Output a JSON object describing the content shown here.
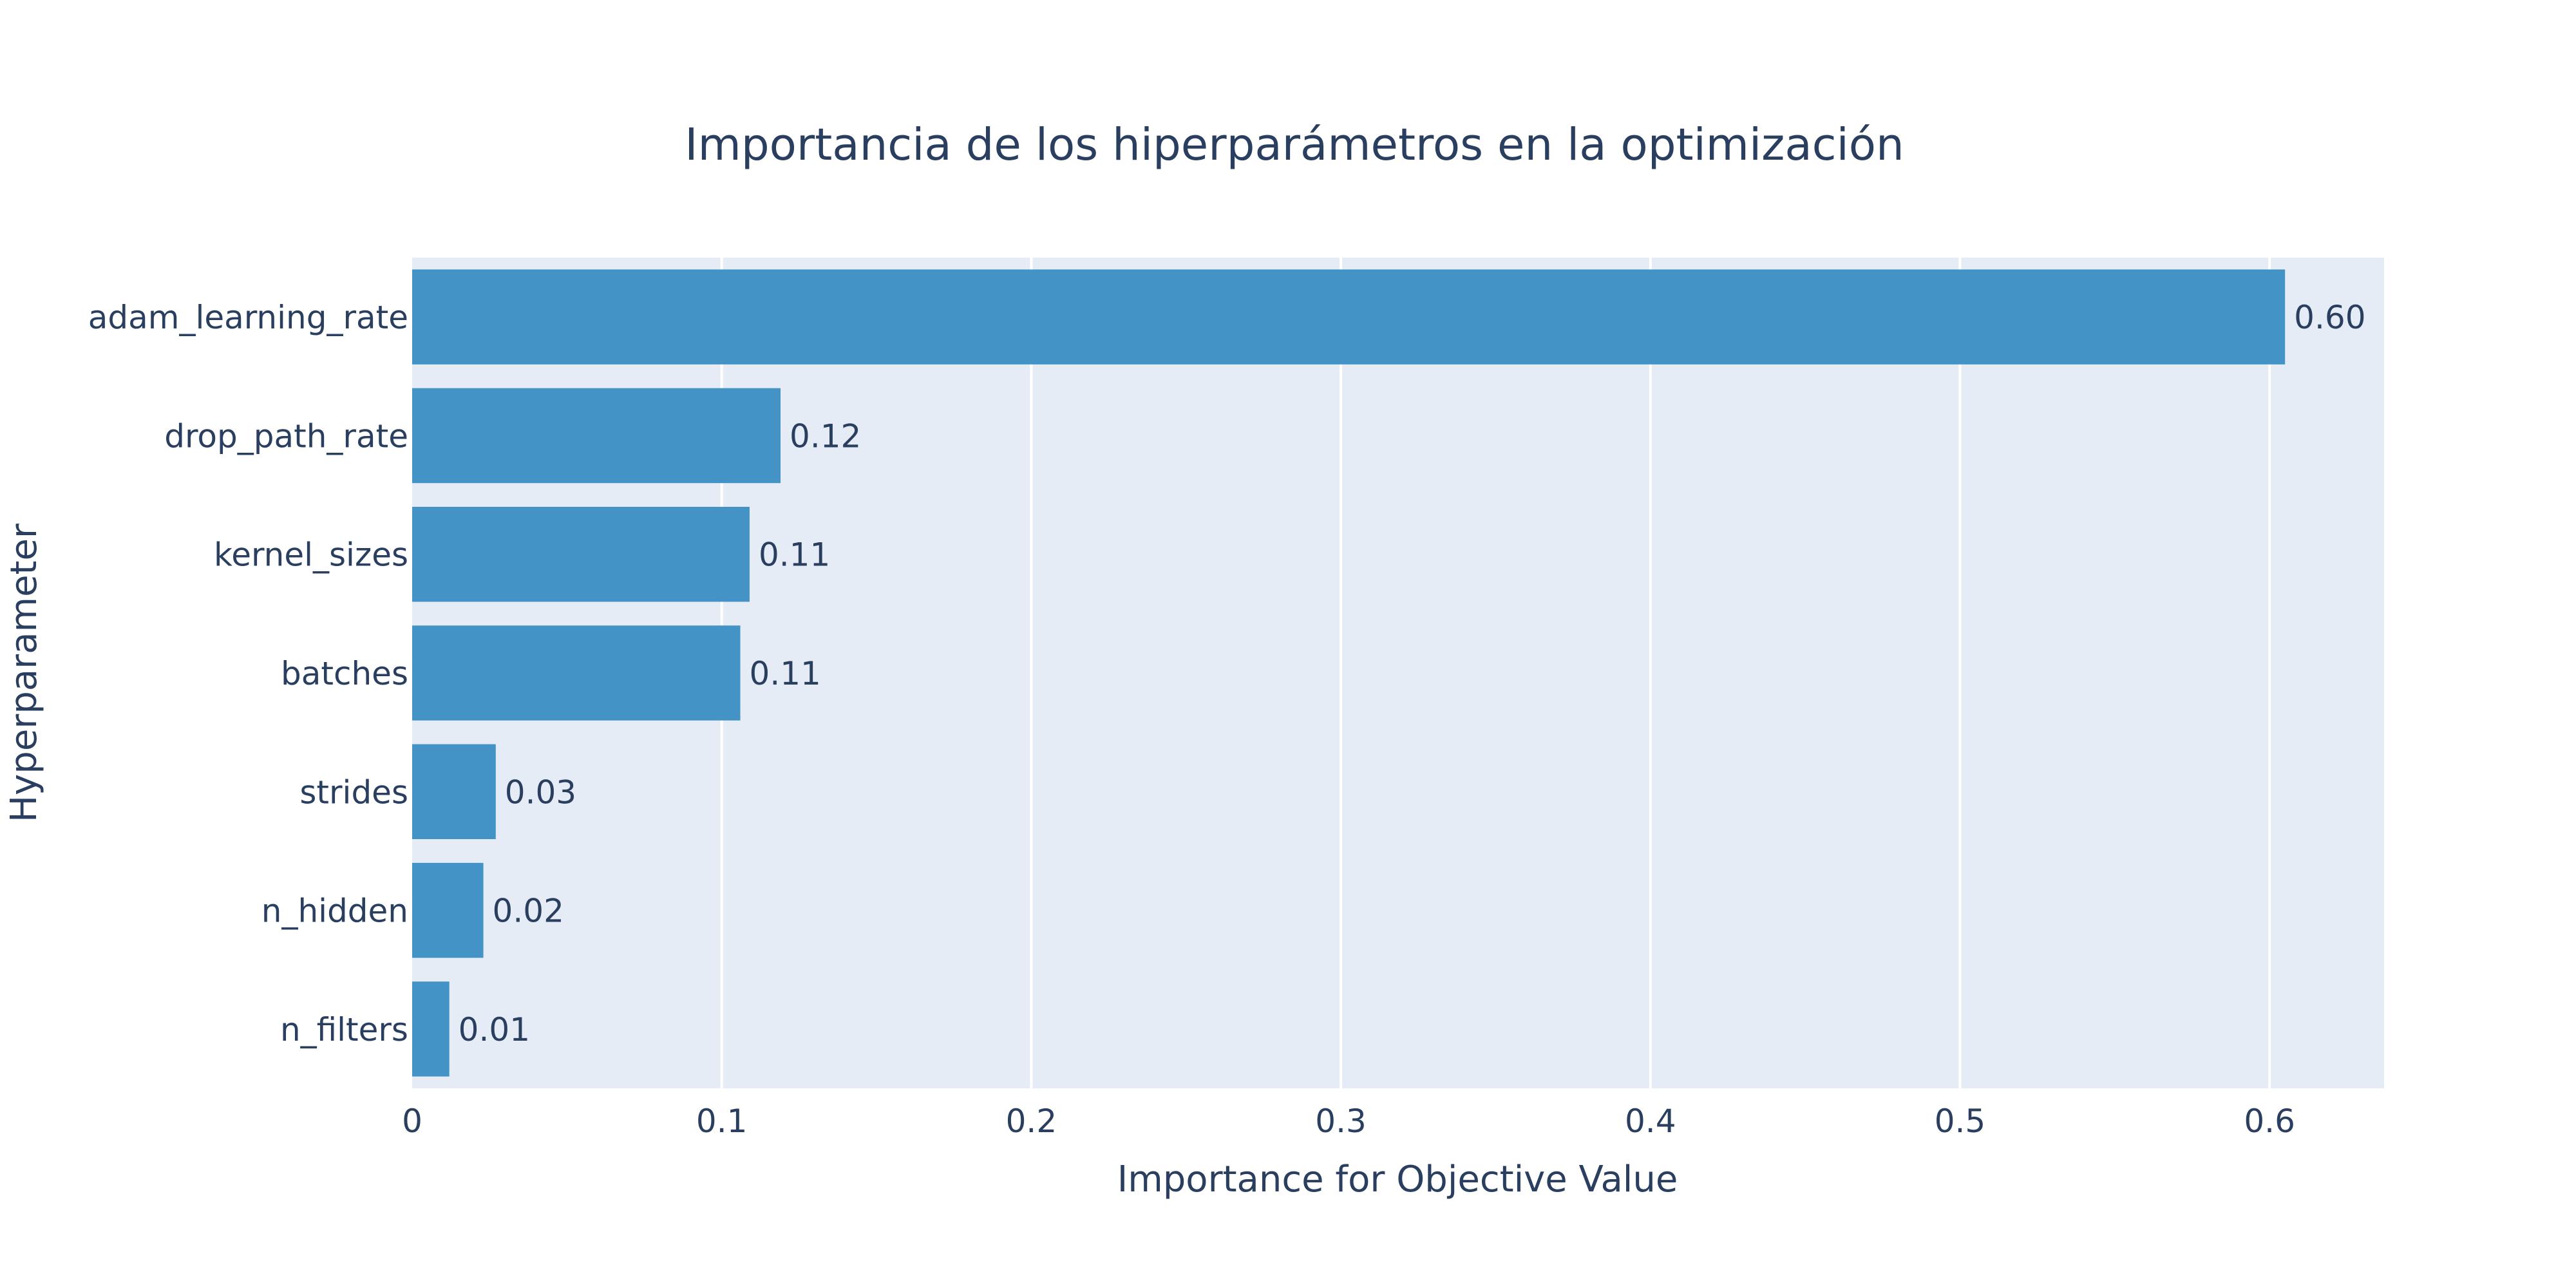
{
  "chart_data": {
    "type": "bar",
    "orientation": "horizontal",
    "title": "Importancia de los hiperparámetros en la optimización",
    "xlabel": "Importance for Objective Value",
    "ylabel": "Hyperparameter",
    "categories": [
      "adam_learning_rate",
      "drop_path_rate",
      "kernel_sizes",
      "batches",
      "strides",
      "n_hidden",
      "n_filters"
    ],
    "values": [
      0.605,
      0.119,
      0.109,
      0.106,
      0.027,
      0.023,
      0.012
    ],
    "value_labels": [
      "0.60",
      "0.12",
      "0.11",
      "0.11",
      "0.03",
      "0.02",
      "0.01"
    ],
    "xlim": [
      0,
      0.637
    ],
    "xticks": [
      0,
      0.1,
      0.2,
      0.3,
      0.4,
      0.5,
      0.6
    ],
    "xtick_labels": [
      "0",
      "0.1",
      "0.2",
      "0.3",
      "0.4",
      "0.5",
      "0.6"
    ],
    "grid": true,
    "colors": {
      "bar": "#4393c6",
      "plot_background": "#e5ecf6",
      "grid": "#ffffff",
      "text": "#2a3f5f"
    }
  }
}
